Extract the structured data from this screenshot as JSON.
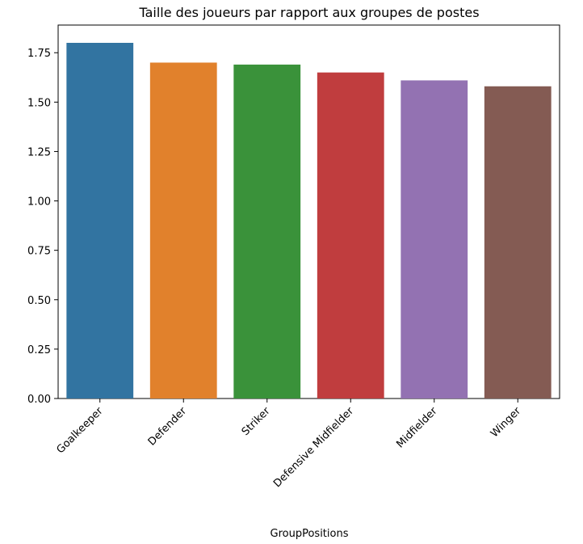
{
  "chart_data": {
    "type": "bar",
    "title": "Taille des joueurs par rapport aux groupes de postes",
    "xlabel": "GroupPositions",
    "ylabel": "",
    "categories": [
      "Goalkeeper",
      "Defender",
      "Striker",
      "Defensive Midfielder",
      "Midfielder",
      "Winger"
    ],
    "values": [
      1.8,
      1.7,
      1.69,
      1.65,
      1.61,
      1.58
    ],
    "colors": [
      "#3274a1",
      "#e1812c",
      "#3a923a",
      "#c03d3e",
      "#9372b2",
      "#845b53"
    ],
    "yticks": [
      "0.00",
      "0.25",
      "0.50",
      "0.75",
      "1.00",
      "1.25",
      "1.50",
      "1.75"
    ],
    "ylim": [
      0,
      1.89
    ],
    "grid": false,
    "legend": "none"
  }
}
